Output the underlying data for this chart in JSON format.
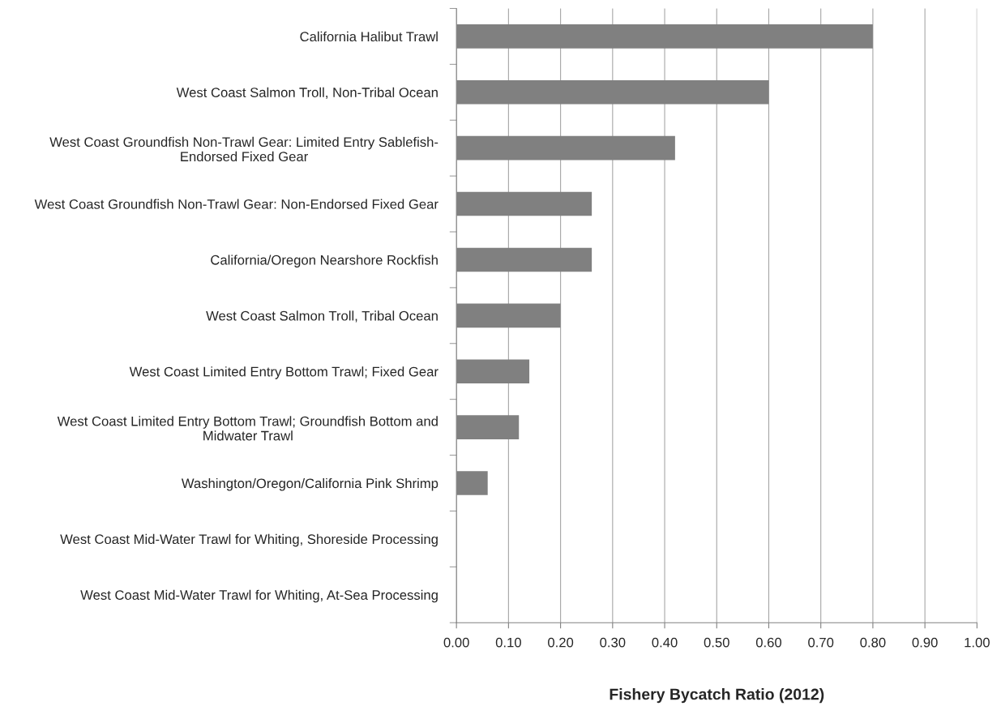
{
  "chart_data": {
    "type": "bar",
    "orientation": "horizontal",
    "xlabel": "Fishery Bycatch Ratio (2012)",
    "categories": [
      "California Halibut Trawl",
      "West Coast Salmon Troll, Non-Tribal Ocean",
      "West Coast Groundfish Non-Trawl Gear: Limited Entry Sablefish-\nEndorsed Fixed Gear",
      "West Coast Groundfish Non-Trawl Gear: Non-Endorsed Fixed Gear",
      "California/Oregon Nearshore Rockfish",
      "West Coast Salmon Troll, Tribal Ocean",
      "West Coast Limited Entry Bottom Trawl; Fixed Gear",
      "West Coast Limited Entry Bottom Trawl; Groundfish Bottom and\nMidwater Trawl",
      "Washington/Oregon/California Pink Shrimp",
      "West Coast Mid-Water Trawl for Whiting, Shoreside Processing",
      "West Coast Mid-Water Trawl for Whiting, At-Sea Processing"
    ],
    "values": [
      0.8,
      0.6,
      0.42,
      0.26,
      0.26,
      0.2,
      0.14,
      0.12,
      0.06,
      0,
      0
    ],
    "color": "#808080",
    "xlim": [
      0,
      1
    ],
    "xticks": [
      {
        "value": 0,
        "label": "0.00"
      },
      {
        "value": 0.1,
        "label": "0.10"
      },
      {
        "value": 0.2,
        "label": "0.20"
      },
      {
        "value": 0.3,
        "label": "0.30"
      },
      {
        "value": 0.4,
        "label": "0.40"
      },
      {
        "value": 0.5,
        "label": "0.50"
      },
      {
        "value": 0.6,
        "label": "0.60"
      },
      {
        "value": 0.7,
        "label": "0.70"
      },
      {
        "value": 0.8,
        "label": "0.80"
      },
      {
        "value": 0.9,
        "label": "0.90"
      },
      {
        "value": 1,
        "label": "1.00"
      }
    ],
    "grid": "x",
    "legend": false
  }
}
